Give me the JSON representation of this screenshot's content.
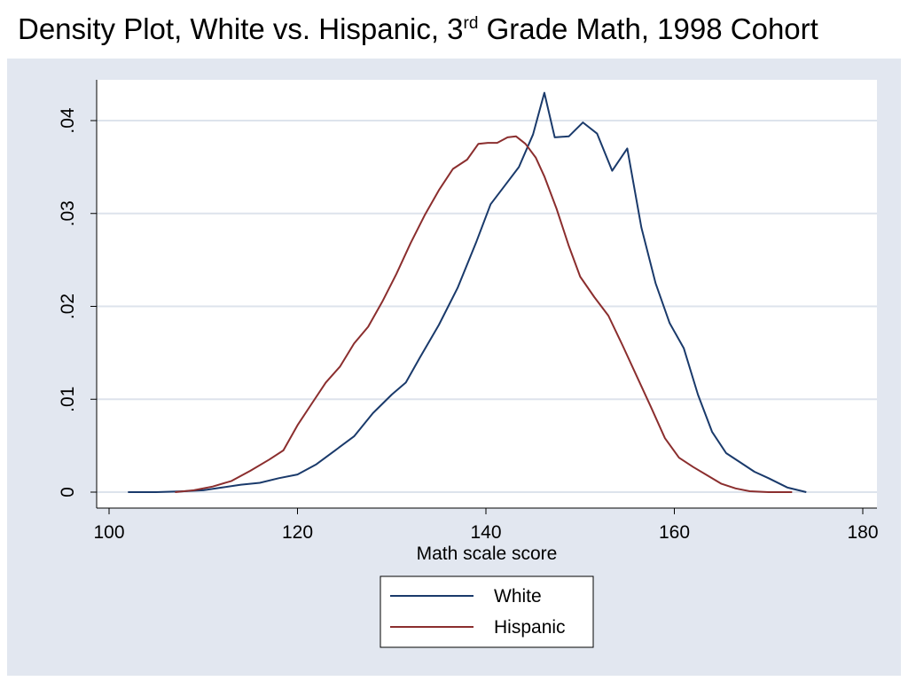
{
  "slide": {
    "title_prefix": "Density Plot, White vs. Hispanic, 3",
    "title_superscript": "rd",
    "title_suffix": " Grade Math, 1998 Cohort"
  },
  "chart_data": {
    "type": "line",
    "title": "Density Plot, White vs. Hispanic, 3rd Grade Math, 1998 Cohort",
    "xlabel": "Math scale score",
    "ylabel": "",
    "xlim": [
      100,
      180
    ],
    "ylim": [
      0,
      0.044
    ],
    "x_ticks": [
      100,
      120,
      140,
      160,
      180
    ],
    "x_tick_labels": [
      "100",
      "120",
      "140",
      "160",
      "180"
    ],
    "y_ticks": [
      0,
      0.01,
      0.02,
      0.03,
      0.04
    ],
    "y_tick_labels": [
      "0",
      ".01",
      ".02",
      ".03",
      ".04"
    ],
    "grid": "horizontal",
    "legend_position": "bottom-center",
    "colors": {
      "White": "#1a3a6b",
      "Hispanic": "#8b2e2e",
      "panel": "#e2e7f0",
      "plot": "#ffffff",
      "grid": "#dde3ec"
    },
    "series": [
      {
        "name": "White",
        "color": "#1a3a6b",
        "points": [
          [
            102,
            0
          ],
          [
            105,
            0
          ],
          [
            108,
            0.0001
          ],
          [
            110,
            0.0002
          ],
          [
            112,
            0.0005
          ],
          [
            114,
            0.0008
          ],
          [
            116,
            0.001
          ],
          [
            118,
            0.0015
          ],
          [
            120,
            0.0019
          ],
          [
            122,
            0.003
          ],
          [
            124,
            0.0045
          ],
          [
            126,
            0.006
          ],
          [
            128,
            0.0085
          ],
          [
            130,
            0.0105
          ],
          [
            131.5,
            0.0118
          ],
          [
            133,
            0.0145
          ],
          [
            135,
            0.018
          ],
          [
            137,
            0.022
          ],
          [
            139,
            0.027
          ],
          [
            140.5,
            0.031
          ],
          [
            142,
            0.033
          ],
          [
            143.5,
            0.035
          ],
          [
            145,
            0.0385
          ],
          [
            146.2,
            0.043
          ],
          [
            147.3,
            0.0382
          ],
          [
            148.8,
            0.0383
          ],
          [
            150.3,
            0.0398
          ],
          [
            151.8,
            0.0386
          ],
          [
            153.4,
            0.0346
          ],
          [
            155,
            0.037
          ],
          [
            156.5,
            0.0285
          ],
          [
            158,
            0.0225
          ],
          [
            159.5,
            0.0182
          ],
          [
            161,
            0.0155
          ],
          [
            162.5,
            0.0105
          ],
          [
            164,
            0.0065
          ],
          [
            165.5,
            0.0042
          ],
          [
            167,
            0.0032
          ],
          [
            168.5,
            0.0022
          ],
          [
            170,
            0.0015
          ],
          [
            172,
            0.0005
          ],
          [
            174,
            0
          ]
        ]
      },
      {
        "name": "Hispanic",
        "color": "#8b2e2e",
        "points": [
          [
            107,
            0
          ],
          [
            109,
            0.0002
          ],
          [
            111,
            0.0006
          ],
          [
            113,
            0.0012
          ],
          [
            115,
            0.0023
          ],
          [
            117,
            0.0035
          ],
          [
            118.5,
            0.0045
          ],
          [
            120,
            0.0072
          ],
          [
            121.5,
            0.0095
          ],
          [
            123,
            0.0118
          ],
          [
            124.5,
            0.0135
          ],
          [
            126,
            0.016
          ],
          [
            127.5,
            0.0178
          ],
          [
            129,
            0.0205
          ],
          [
            130.5,
            0.0235
          ],
          [
            132,
            0.0268
          ],
          [
            133.5,
            0.0298
          ],
          [
            135,
            0.0325
          ],
          [
            136.5,
            0.0348
          ],
          [
            138,
            0.0358
          ],
          [
            139.2,
            0.0375
          ],
          [
            140.2,
            0.0376
          ],
          [
            141.2,
            0.0376
          ],
          [
            142.3,
            0.0382
          ],
          [
            143.2,
            0.0383
          ],
          [
            144.2,
            0.0375
          ],
          [
            145.3,
            0.036
          ],
          [
            146.2,
            0.034
          ],
          [
            147.5,
            0.0305
          ],
          [
            148.8,
            0.0265
          ],
          [
            150,
            0.0232
          ],
          [
            151.5,
            0.021
          ],
          [
            153,
            0.019
          ],
          [
            154.5,
            0.0158
          ],
          [
            156,
            0.0125
          ],
          [
            157.5,
            0.0092
          ],
          [
            159,
            0.0058
          ],
          [
            160.5,
            0.0037
          ],
          [
            162,
            0.0027
          ],
          [
            163.5,
            0.0018
          ],
          [
            165,
            0.0009
          ],
          [
            166.5,
            0.0004
          ],
          [
            168,
            0.0001
          ],
          [
            170,
            0
          ],
          [
            172.5,
            0
          ]
        ]
      }
    ]
  }
}
